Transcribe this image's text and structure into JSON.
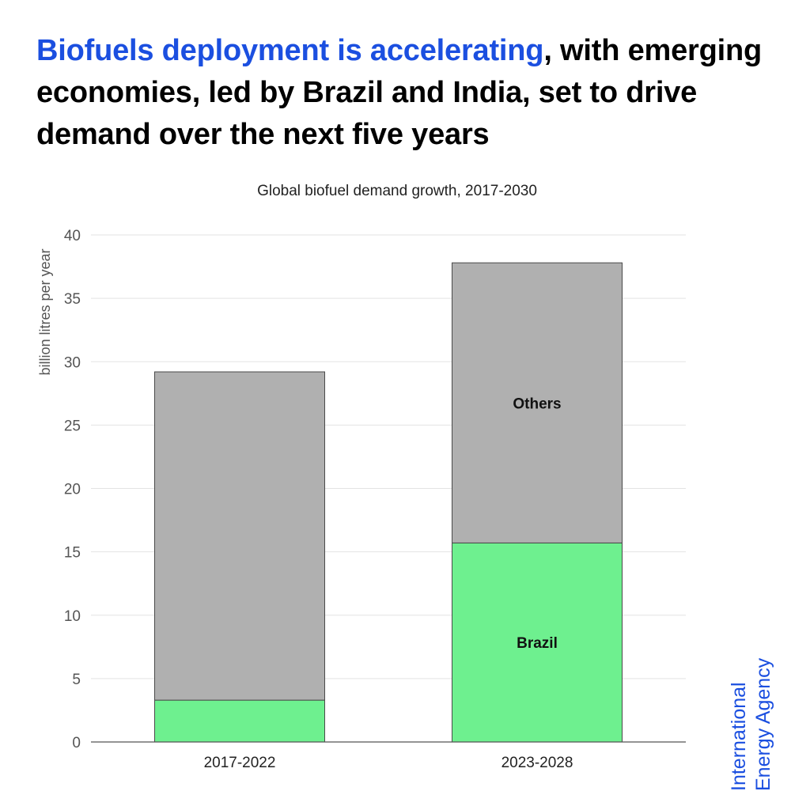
{
  "header": {
    "title_highlight": "Biofuels deployment is accelerating",
    "title_rest": ", with emerging economies, led by Brazil and India, set to drive demand over the next five years"
  },
  "brand": {
    "line1": "International",
    "line2": "Energy Agency",
    "color": "#1b4fe0"
  },
  "chart_data": {
    "type": "bar",
    "stacked": true,
    "title": "Global biofuel demand growth, 2017-2030",
    "ylabel": "billion litres per year",
    "xlabel": "",
    "ylim": [
      0,
      40
    ],
    "yticks": [
      0,
      5,
      10,
      15,
      20,
      25,
      30,
      35,
      40
    ],
    "grid": true,
    "categories": [
      "2017-2022",
      "2023-2028"
    ],
    "series": [
      {
        "name": "Brazil",
        "color": "#6ef08f",
        "values": [
          3.3,
          15.7
        ],
        "label_on": [
          false,
          true
        ]
      },
      {
        "name": "Others",
        "color": "#b0b0b0",
        "values": [
          25.9,
          22.1
        ],
        "label_on": [
          false,
          true
        ]
      }
    ]
  }
}
